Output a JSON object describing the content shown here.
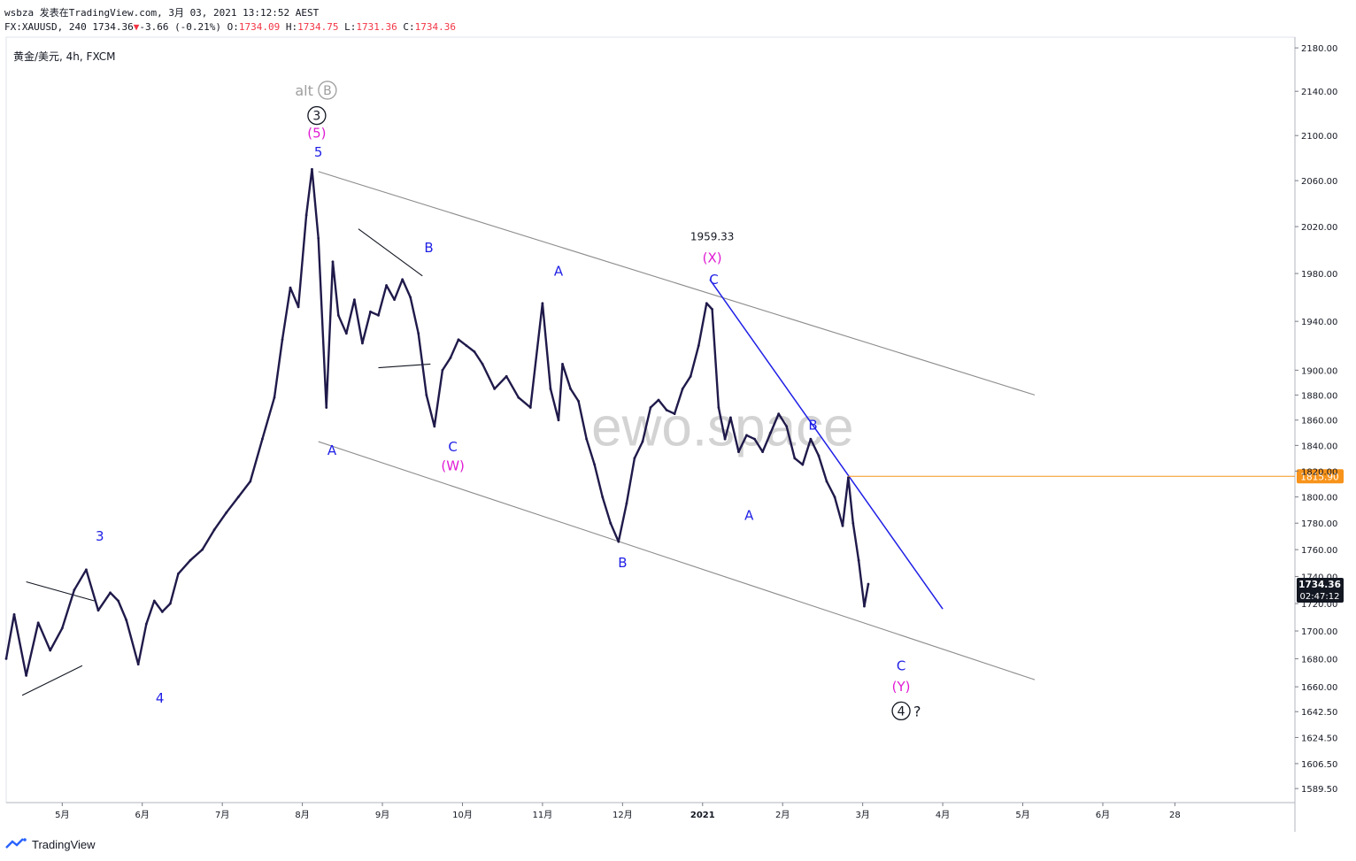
{
  "header": {
    "line1": "wsbza 发表在TradingView.com, 3月 03, 2021 13:12:52 AEST",
    "symbol_code": "FX:XAUUSD, 240",
    "last": "1734.36",
    "change_arrow": "▼",
    "change": "-3.66 (-0.21%)",
    "open_label": "O:",
    "open": "1734.09",
    "high_label": "H:",
    "high": "1734.75",
    "low_label": "L:",
    "low": "1731.36",
    "close_label": "C:",
    "close": "1734.36"
  },
  "symbol_label": "黄金/美元, 4h, FXCM",
  "watermark": "ewo.space",
  "price_marker": {
    "value": 1815.9,
    "label": "1815.90",
    "color": "#f7931a"
  },
  "last_price_box": {
    "value": 1734.36,
    "label": "1734.36",
    "countdown": "02:47:12"
  },
  "footer": {
    "brand": "TradingView"
  },
  "colors": {
    "candles": "#1f1a4a",
    "wave_blue": "#1f1fe6",
    "wave_magenta": "#e01bd4",
    "channel": "#8c8c8c",
    "trendline": "#1f1fe6"
  },
  "chart_data": {
    "type": "line",
    "title": "黄金/美元, 4h, FXCM",
    "y_scale": "log",
    "ylim": [
      1580,
      2190
    ],
    "y_ticks": [
      2180.0,
      2140.0,
      2100.0,
      2060.0,
      2020.0,
      1980.0,
      1940.0,
      1900.0,
      1880.0,
      1860.0,
      1840.0,
      1820.0,
      1800.0,
      1780.0,
      1760.0,
      1740.0,
      1720.0,
      1700.0,
      1680.0,
      1660.0,
      1642.5,
      1624.5,
      1606.5,
      1589.5
    ],
    "x_ticks": [
      {
        "t": 1.0,
        "label": "5月"
      },
      {
        "t": 2.0,
        "label": "6月"
      },
      {
        "t": 3.0,
        "label": "7月"
      },
      {
        "t": 4.0,
        "label": "8月"
      },
      {
        "t": 5.0,
        "label": "9月"
      },
      {
        "t": 6.0,
        "label": "10月"
      },
      {
        "t": 7.0,
        "label": "11月"
      },
      {
        "t": 8.0,
        "label": "12月"
      },
      {
        "t": 9.0,
        "label": "2021"
      },
      {
        "t": 10.0,
        "label": "2月"
      },
      {
        "t": 11.0,
        "label": "3月"
      },
      {
        "t": 12.0,
        "label": "4月"
      },
      {
        "t": 13.0,
        "label": "5月"
      },
      {
        "t": 14.0,
        "label": "6月"
      },
      {
        "t": 14.9,
        "label": "28"
      }
    ],
    "xlim": [
      0.3,
      16.4
    ],
    "series": [
      {
        "x": [
          0.3,
          0.4,
          0.55,
          0.7,
          0.85,
          1.0,
          1.15,
          1.3,
          1.45,
          1.6,
          1.7,
          1.8,
          1.95,
          2.05,
          2.15,
          2.25,
          2.35,
          2.45,
          2.6,
          2.75,
          2.9,
          3.05,
          3.2,
          3.35,
          3.5,
          3.65,
          3.75,
          3.85,
          3.95,
          4.05,
          4.12,
          4.2,
          4.3,
          4.38,
          4.45,
          4.55,
          4.65,
          4.75,
          4.85,
          4.95,
          5.05,
          5.15,
          5.25,
          5.35,
          5.45,
          5.55,
          5.65,
          5.75,
          5.85,
          5.95,
          6.05,
          6.15,
          6.25,
          6.4,
          6.55,
          6.7,
          6.85,
          7.0,
          7.1,
          7.2,
          7.25,
          7.35,
          7.45,
          7.55,
          7.65,
          7.75,
          7.85,
          7.95,
          8.05,
          8.15,
          8.25,
          8.35,
          8.45,
          8.55,
          8.65,
          8.75,
          8.85,
          8.95,
          9.05,
          9.12,
          9.2,
          9.28,
          9.35,
          9.45,
          9.55,
          9.65,
          9.75,
          9.85,
          9.95,
          10.05,
          10.15,
          10.25,
          10.35,
          10.45,
          10.55,
          10.65,
          10.75,
          10.82,
          10.88,
          10.95,
          11.02,
          11.07
        ],
        "values": [
          1680,
          1712,
          1668,
          1706,
          1686,
          1702,
          1730,
          1745,
          1715,
          1728,
          1722,
          1708,
          1676,
          1705,
          1722,
          1714,
          1720,
          1742,
          1752,
          1760,
          1775,
          1788,
          1800,
          1812,
          1845,
          1878,
          1925,
          1968,
          1952,
          2030,
          2070,
          2010,
          1870,
          1990,
          1945,
          1930,
          1958,
          1922,
          1948,
          1945,
          1970,
          1958,
          1975,
          1960,
          1930,
          1880,
          1855,
          1900,
          1910,
          1925,
          1920,
          1915,
          1905,
          1885,
          1895,
          1878,
          1870,
          1955,
          1885,
          1860,
          1905,
          1885,
          1875,
          1845,
          1825,
          1800,
          1780,
          1766,
          1795,
          1830,
          1843,
          1870,
          1876,
          1868,
          1865,
          1885,
          1895,
          1920,
          1955,
          1950,
          1870,
          1845,
          1862,
          1835,
          1848,
          1845,
          1835,
          1850,
          1865,
          1855,
          1830,
          1825,
          1845,
          1832,
          1812,
          1800,
          1778,
          1815,
          1780,
          1752,
          1718,
          1734.36
        ]
      }
    ],
    "annotations": [
      {
        "t": 4.18,
        "v": 2141,
        "text": "alt",
        "circle": "B",
        "color": "#9e9e9e"
      },
      {
        "t": 4.18,
        "v": 2118,
        "text": "",
        "circle": "3",
        "color": "#131722"
      },
      {
        "t": 4.18,
        "v": 2102,
        "text": "(5)",
        "color": "#e01bd4"
      },
      {
        "t": 4.2,
        "v": 2085,
        "text": "5",
        "color": "#1f1fe6"
      },
      {
        "t": 4.37,
        "v": 1836,
        "text": "A",
        "color": "#1f1fe6"
      },
      {
        "t": 5.58,
        "v": 2002,
        "text": "B",
        "color": "#1f1fe6"
      },
      {
        "t": 5.88,
        "v": 1839,
        "text": "C",
        "color": "#1f1fe6"
      },
      {
        "t": 5.88,
        "v": 1824,
        "text": "(W)",
        "color": "#e01bd4"
      },
      {
        "t": 7.2,
        "v": 1982,
        "text": "A",
        "color": "#1f1fe6"
      },
      {
        "t": 8.0,
        "v": 1750,
        "text": "B",
        "color": "#1f1fe6"
      },
      {
        "t": 9.12,
        "v": 2012,
        "text": "1959.33",
        "color": "#131722"
      },
      {
        "t": 9.12,
        "v": 1993,
        "text": "(X)",
        "color": "#e01bd4"
      },
      {
        "t": 9.14,
        "v": 1975,
        "text": "C",
        "color": "#1f1fe6"
      },
      {
        "t": 9.58,
        "v": 1786,
        "text": "A",
        "color": "#1f1fe6"
      },
      {
        "t": 10.38,
        "v": 1856,
        "text": "B",
        "color": "#1f1fe6"
      },
      {
        "t": 1.47,
        "v": 1770,
        "text": "3",
        "color": "#1f1fe6"
      },
      {
        "t": 2.22,
        "v": 1652,
        "text": "4",
        "color": "#1f1fe6"
      },
      {
        "t": 11.48,
        "v": 1675,
        "text": "C",
        "color": "#1f1fe6"
      },
      {
        "t": 11.48,
        "v": 1660,
        "text": "(Y)",
        "color": "#e01bd4"
      },
      {
        "t": 11.48,
        "v": 1643,
        "text": "?",
        "circle": "4",
        "color": "#131722"
      }
    ]
  }
}
